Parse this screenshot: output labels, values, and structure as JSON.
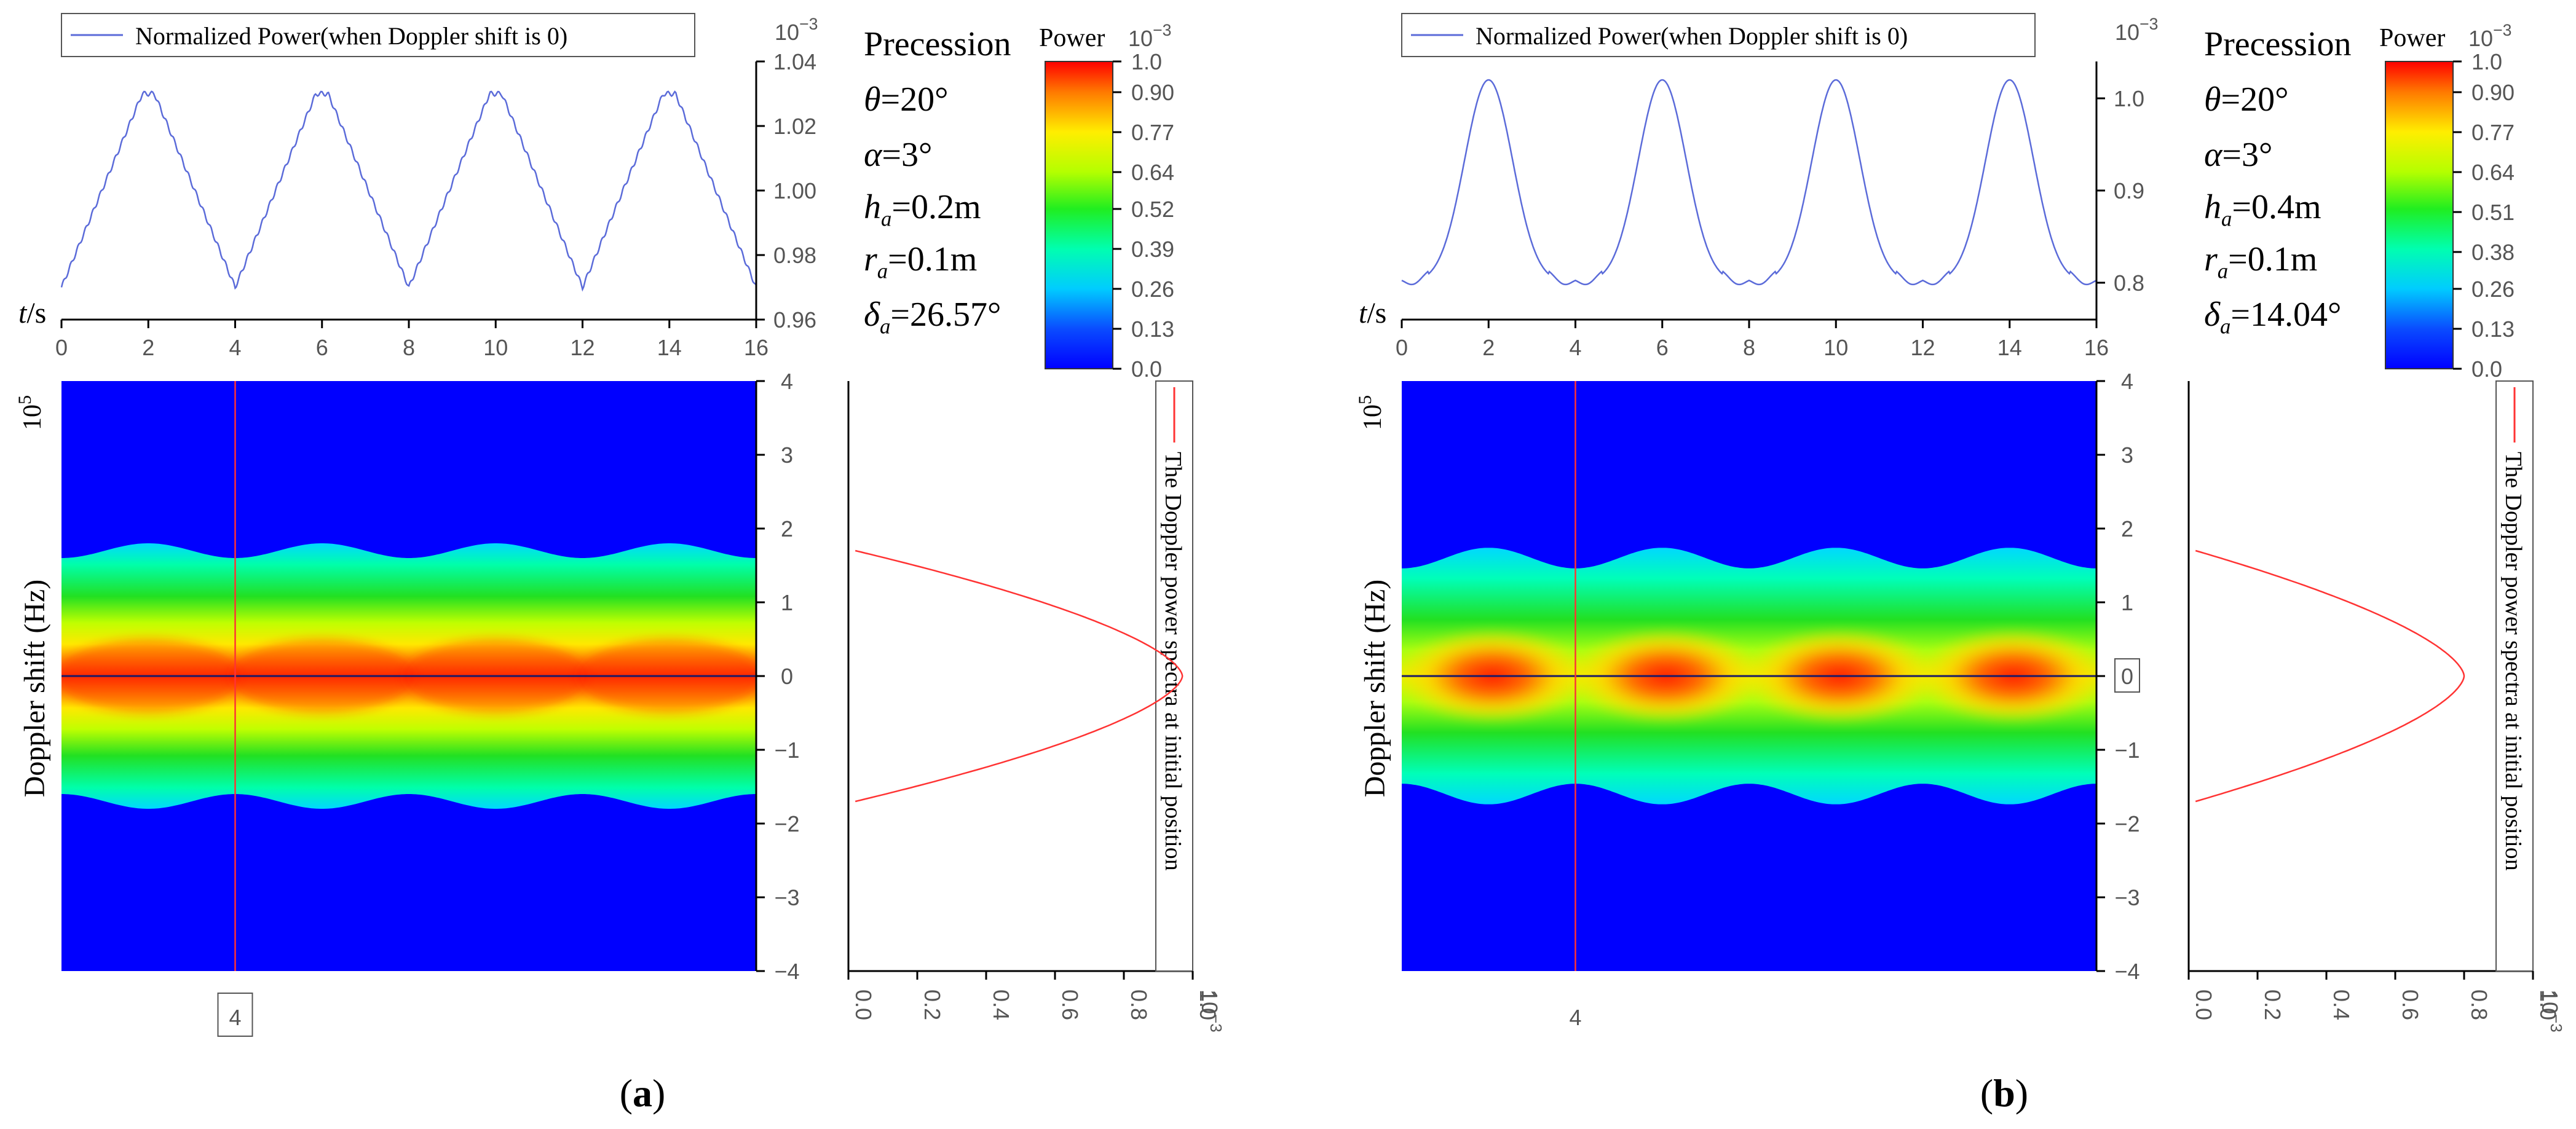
{
  "figure": {
    "caption_a": "(a)",
    "caption_b": "(b)",
    "caption_a_bold": "a",
    "caption_b_bold": "b"
  },
  "colors": {
    "blue_line": "#5b6bd9",
    "red_line": "#ff3333",
    "dark_line": "#1a1a66",
    "bg_blue": "#0000ff"
  },
  "chart_data": [
    {
      "panel": "a",
      "type": "line",
      "title": "Normalized Power(when Doppler shift is 0)",
      "series": [
        {
          "name": "Normalized Power(when Doppler shift is 0)",
          "shape": "triangular",
          "period": 4,
          "peak_times": [
            2,
            6,
            10,
            14
          ],
          "min": 0.97,
          "max": 1.03
        }
      ],
      "x": {
        "label": "t/s",
        "label_italic": "t",
        "label_rest": "/s",
        "range": [
          0,
          16
        ],
        "ticks": [
          0,
          2,
          4,
          6,
          8,
          10,
          12,
          14,
          16
        ]
      },
      "y": {
        "label": "",
        "multiplier": "10",
        "multiplier_exp": "−3",
        "range": [
          0.96,
          1.04
        ],
        "ticks": [
          0.96,
          0.98,
          1.0,
          1.02,
          1.04
        ],
        "tick_labels": [
          "0.96",
          "0.98",
          "1.00",
          "1.02",
          "1.04"
        ]
      },
      "params": {
        "title": "Precession",
        "theta": "θ=20°",
        "alpha": "α=3°",
        "h": "h_a=0.2m",
        "h_sym": "h",
        "h_val": "=0.2m",
        "r": "r_a=0.1m",
        "r_sym": "r",
        "r_val": "=0.1m",
        "delta": "δ_a=26.57°",
        "delta_sym": "δ",
        "delta_val": "=26.57°",
        "theta_sym": "θ",
        "theta_val": "=20°",
        "alpha_sym": "α",
        "alpha_val": "=3°",
        "sub": "a"
      },
      "colorbar": {
        "label": "Power",
        "multiplier": "10",
        "multiplier_exp": "−3",
        "range": [
          0,
          1
        ],
        "ticks": [
          1.0,
          0.9,
          0.77,
          0.64,
          0.52,
          0.39,
          0.26,
          0.13,
          0.0
        ],
        "tick_labels": [
          "1.0",
          "0.90",
          "0.77",
          "0.64",
          "0.52",
          "0.39",
          "0.26",
          "0.13",
          "0.0"
        ]
      },
      "heatmap": {
        "type": "heatmap",
        "x_range": [
          0,
          16
        ],
        "y": {
          "label": "Doppler shift (Hz)",
          "multiplier": "10",
          "multiplier_exp": "5",
          "range": [
            -4,
            4
          ],
          "ticks": [
            4,
            3,
            2,
            1,
            0,
            -1,
            -2,
            -3,
            -4
          ],
          "tick_labels": [
            "4",
            "3",
            "2",
            "1",
            "0",
            "−1",
            "−2",
            "−3",
            "−4"
          ]
        },
        "band_half_width": 1.7,
        "band_wave_amplitude": 0.1,
        "bright_peaks": false,
        "marker_x": 4,
        "marker_label": "4",
        "marker_label_boxed": true,
        "zero_label_boxed": false
      },
      "spectrum": {
        "type": "line",
        "legend": "The Doppler power spectra at initial position",
        "x": {
          "multiplier": "10",
          "multiplier_exp": "−3",
          "range": [
            0,
            1
          ],
          "ticks": [
            0.0,
            0.2,
            0.4,
            0.6,
            0.8,
            1.0
          ],
          "tick_labels": [
            "0.0",
            "0.2",
            "0.4",
            "0.6",
            "0.8",
            "1.0"
          ]
        },
        "y_range": [
          -4,
          4
        ],
        "peak_power": 0.97,
        "half_width": 1.7
      }
    },
    {
      "panel": "b",
      "type": "line",
      "title": "Normalized Power(when Doppler shift is 0)",
      "series": [
        {
          "name": "Normalized Power(when Doppler shift is 0)",
          "shape": "rounded",
          "period": 4,
          "peak_times": [
            2,
            6,
            10,
            14
          ],
          "min": 0.8,
          "max": 1.02
        }
      ],
      "x": {
        "label": "t/s",
        "label_italic": "t",
        "label_rest": "/s",
        "range": [
          0,
          16
        ],
        "ticks": [
          0,
          2,
          4,
          6,
          8,
          10,
          12,
          14,
          16
        ]
      },
      "y": {
        "label": "",
        "multiplier": "10",
        "multiplier_exp": "−3",
        "range": [
          0.76,
          1.04
        ],
        "ticks": [
          0.8,
          0.9,
          1.0
        ],
        "tick_labels": [
          "0.8",
          "0.9",
          "1.0"
        ]
      },
      "params": {
        "title": "Precession",
        "theta": "θ=20°",
        "alpha": "α=3°",
        "h": "h_a=0.4m",
        "h_sym": "h",
        "h_val": "=0.4m",
        "r": "r_a=0.1m",
        "r_sym": "r",
        "r_val": "=0.1m",
        "delta": "δ_a=14.04°",
        "delta_sym": "δ",
        "delta_val": "=14.04°",
        "theta_sym": "θ",
        "theta_val": "=20°",
        "alpha_sym": "α",
        "alpha_val": "=3°",
        "sub": "a"
      },
      "colorbar": {
        "label": "Power",
        "multiplier": "10",
        "multiplier_exp": "−3",
        "range": [
          0,
          1
        ],
        "ticks": [
          1.0,
          0.9,
          0.77,
          0.64,
          0.51,
          0.38,
          0.26,
          0.13,
          0.0
        ],
        "tick_labels": [
          "1.0",
          "0.90",
          "0.77",
          "0.64",
          "0.51",
          "0.38",
          "0.26",
          "0.13",
          "0.0"
        ]
      },
      "heatmap": {
        "type": "heatmap",
        "x_range": [
          0,
          16
        ],
        "y": {
          "label": "Doppler shift (Hz)",
          "multiplier": "10",
          "multiplier_exp": "5",
          "range": [
            -4,
            4
          ],
          "ticks": [
            4,
            3,
            2,
            1,
            0,
            -1,
            -2,
            -3,
            -4
          ],
          "tick_labels": [
            "4",
            "3",
            "2",
            "1",
            "0",
            "−1",
            "−2",
            "−3",
            "−4"
          ]
        },
        "band_half_width": 1.6,
        "band_wave_amplitude": 0.14,
        "bright_peaks": true,
        "marker_x": 4,
        "marker_label": "4",
        "marker_label_boxed": false,
        "zero_label_boxed": true
      },
      "spectrum": {
        "type": "line",
        "legend": "The Doppler power spectra at initial position",
        "x": {
          "multiplier": "10",
          "multiplier_exp": "−3",
          "range": [
            0,
            1
          ],
          "ticks": [
            0.0,
            0.2,
            0.4,
            0.6,
            0.8,
            1.0
          ],
          "tick_labels": [
            "0.0",
            "0.2",
            "0.4",
            "0.6",
            "0.8",
            "1.0"
          ]
        },
        "y_range": [
          -4,
          4
        ],
        "peak_power": 0.8,
        "half_width": 1.7
      }
    }
  ]
}
